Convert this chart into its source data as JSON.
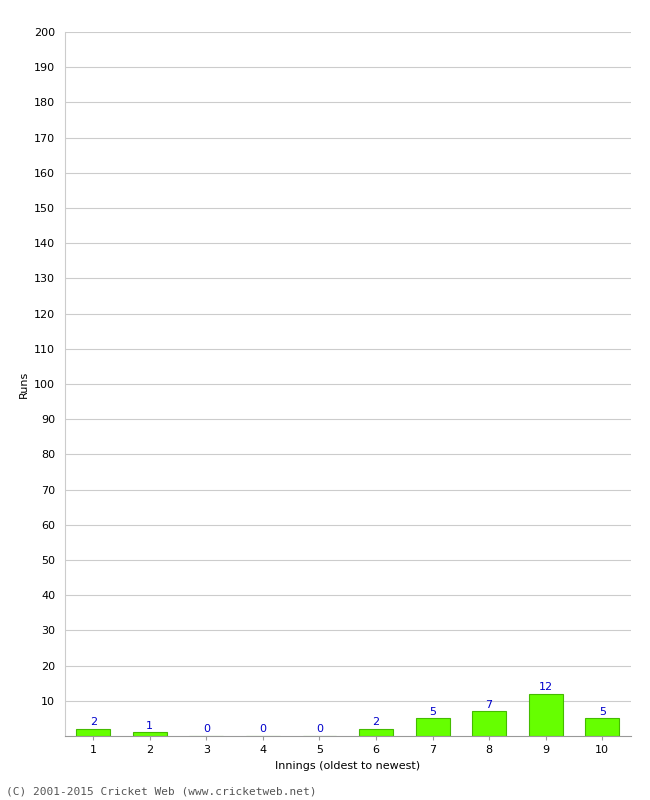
{
  "title": "",
  "xlabel": "Innings (oldest to newest)",
  "ylabel": "Runs",
  "categories": [
    1,
    2,
    3,
    4,
    5,
    6,
    7,
    8,
    9,
    10
  ],
  "values": [
    2,
    1,
    0,
    0,
    0,
    2,
    5,
    7,
    12,
    5
  ],
  "bar_color": "#66ff00",
  "bar_edge_color": "#44bb00",
  "label_color": "#0000cc",
  "ylim": [
    0,
    200
  ],
  "yticks": [
    10,
    20,
    30,
    40,
    50,
    60,
    70,
    80,
    90,
    100,
    110,
    120,
    130,
    140,
    150,
    160,
    170,
    180,
    190,
    200
  ],
  "background_color": "#ffffff",
  "grid_color": "#cccccc",
  "footer": "(C) 2001-2015 Cricket Web (www.cricketweb.net)",
  "label_fontsize": 8,
  "axis_fontsize": 8,
  "footer_fontsize": 8,
  "ylabel_fontsize": 8
}
